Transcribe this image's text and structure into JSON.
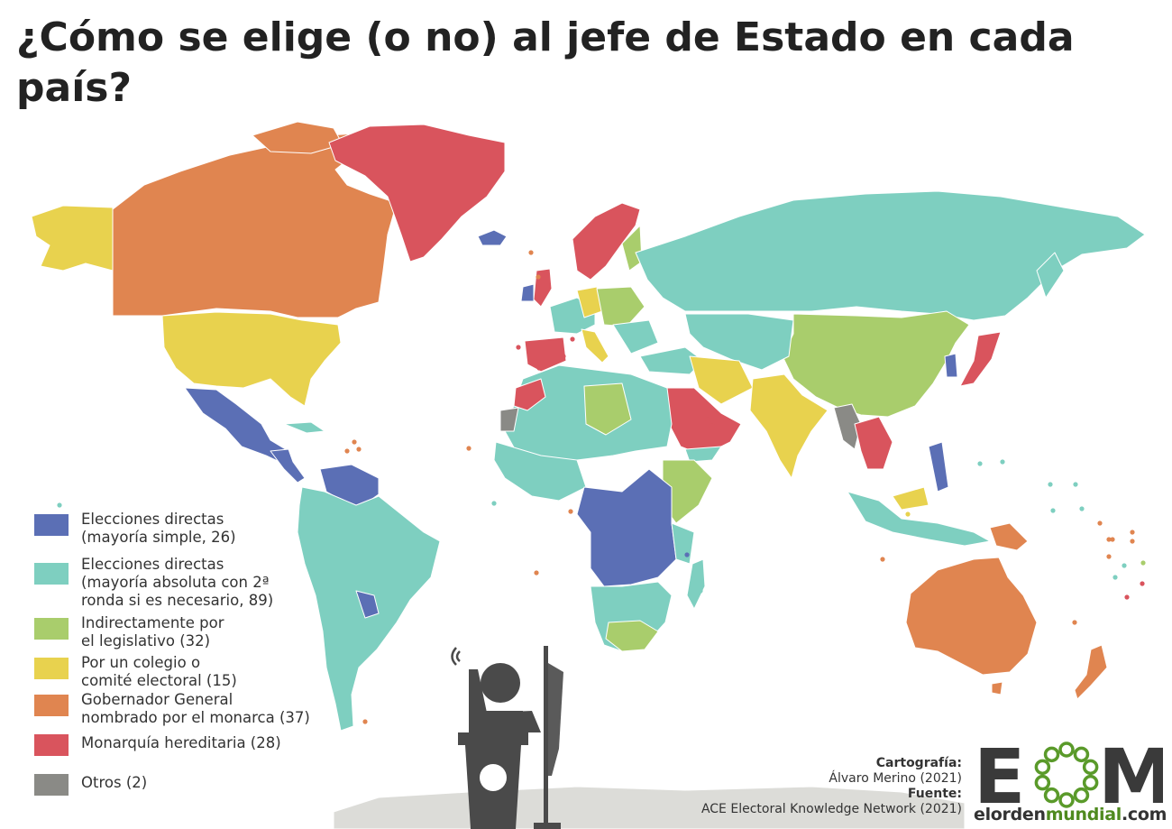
{
  "title": "¿Cómo se elige (o no) al jefe de Estado en cada país?",
  "colors": {
    "simple": "#5b6fb5",
    "absoluta": "#7ecfc0",
    "legislativo": "#a9cd6c",
    "colegio": "#e8d24e",
    "gobernador": "#e08550",
    "monarquia": "#d9545d",
    "otros": "#8a8a86",
    "antarctica": "#dcdcd8"
  },
  "legend": {
    "items": [
      {
        "key": "simple",
        "label": "Elecciones directas\n(mayoría simple, 26)"
      },
      {
        "key": "absoluta",
        "label": "Elecciones directas\n(mayoría absoluta con 2ª\nronda si es necesario, 89)"
      },
      {
        "key": "legislativo",
        "label": "Indirectamente por\nel legislativo (32)"
      },
      {
        "key": "colegio",
        "label": "Por un colegio o\ncomité electoral (15)"
      },
      {
        "key": "gobernador",
        "label": "Gobernador General\nnombrado por el monarca (37)"
      },
      {
        "key": "monarquia",
        "label": "Monarquía hereditaria (28)"
      },
      {
        "key": "otros",
        "label": "Otros (2)"
      }
    ]
  },
  "credits": {
    "cartografia_label": "Cartografía:",
    "cartografia_value": "Álvaro Merino (2021)",
    "fuente_label": "Fuente:",
    "fuente_value": "ACE Electoral Knowledge Network (2021)"
  },
  "logo": {
    "letters": "EOM",
    "url_prefix": "elorden",
    "url_highlight": "mundial",
    "url_suffix": ".com"
  }
}
